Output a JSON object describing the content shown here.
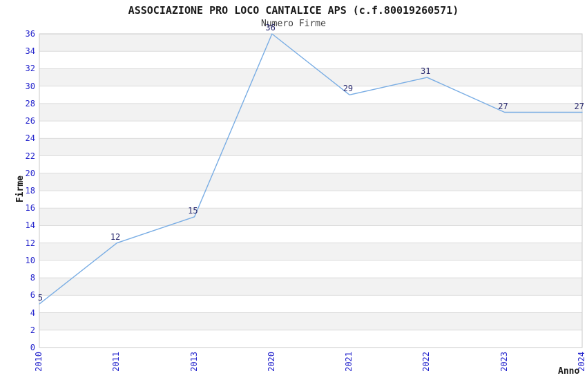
{
  "chart_data": {
    "type": "line",
    "title": "ASSOCIAZIONE PRO LOCO CANTALICE APS (c.f.80019260571)",
    "subtitle": "Numero Firme",
    "xlabel": "Anno",
    "ylabel": "Firme",
    "categories": [
      "2010",
      "2011",
      "2013",
      "2020",
      "2021",
      "2022",
      "2023",
      "2024"
    ],
    "values": [
      5,
      12,
      15,
      36,
      29,
      31,
      27,
      27
    ],
    "point_labels": [
      "5",
      "12",
      "15",
      "36",
      "29",
      "31",
      "27",
      "27"
    ],
    "ylim": [
      0,
      36
    ],
    "ytick_step": 2,
    "legend": "none",
    "grid": "horizontal-bands-alternating",
    "colors": {
      "line": "#79ADE4",
      "tick_label": "#2222CC",
      "point_label": "#28286E",
      "band_fill": "#F2F2F2",
      "band_boundary": "#DCDCDC",
      "plot_border": "#C8C8C8",
      "title": "#1A1A1A",
      "subtitle": "#3D3D3D"
    }
  }
}
